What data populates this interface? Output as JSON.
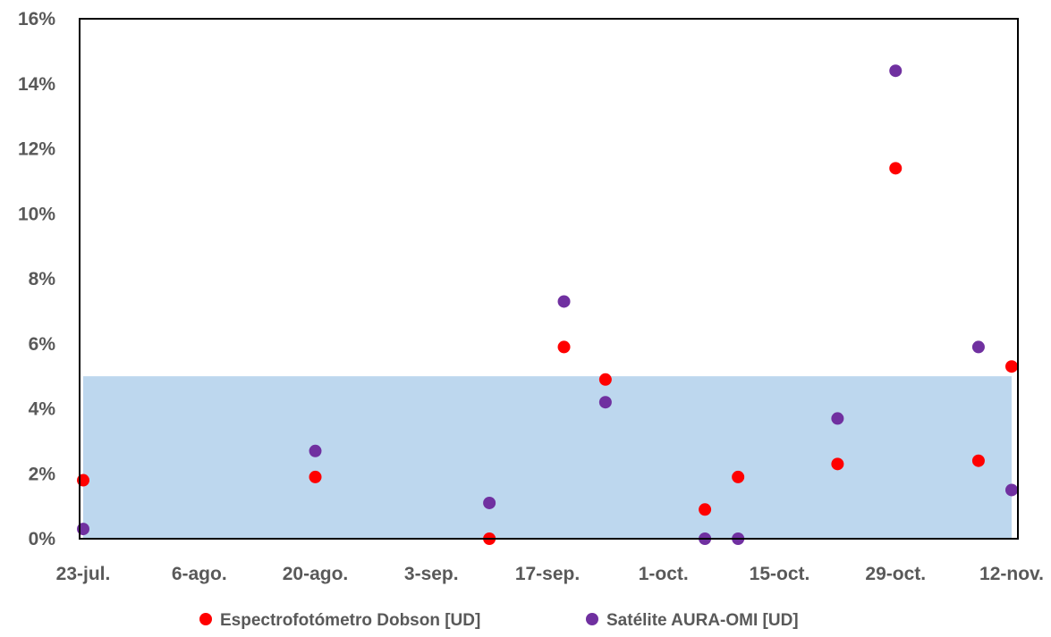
{
  "chart_data": {
    "type": "scatter",
    "title": "",
    "xlabel": "",
    "ylabel": "",
    "x_ticks": [
      "23-jul.",
      "6-ago.",
      "20-ago.",
      "3-sep.",
      "17-sep.",
      "1-oct.",
      "15-oct.",
      "29-oct.",
      "12-nov."
    ],
    "x_range": [
      "23-jul.",
      "12-nov."
    ],
    "y_ticks": [
      "0%",
      "2%",
      "4%",
      "6%",
      "8%",
      "10%",
      "12%",
      "14%",
      "16%"
    ],
    "ylim": [
      0,
      16
    ],
    "y_unit": "%",
    "band": {
      "from": 0,
      "to": 5,
      "color": "#bdd7ee"
    },
    "grid": false,
    "legend_position": "bottom",
    "series": [
      {
        "name": "Espectrofotómetro Dobson [UD]",
        "color": "#ff0000",
        "points": [
          {
            "x": "23-jul.",
            "y": 1.8
          },
          {
            "x": "20-ago.",
            "y": 1.9
          },
          {
            "x": "10-sep.",
            "y": 0.0
          },
          {
            "x": "19-sep.",
            "y": 5.9
          },
          {
            "x": "24-sep.",
            "y": 4.9
          },
          {
            "x": "6-oct.",
            "y": 0.9
          },
          {
            "x": "10-oct.",
            "y": 1.9
          },
          {
            "x": "22-oct.",
            "y": 2.3
          },
          {
            "x": "29-oct.",
            "y": 11.4
          },
          {
            "x": "8-nov.",
            "y": 2.4
          },
          {
            "x": "12-nov.",
            "y": 5.3
          }
        ]
      },
      {
        "name": "Satélite AURA-OMI [UD]",
        "color": "#7030a0",
        "points": [
          {
            "x": "23-jul.",
            "y": 0.3
          },
          {
            "x": "20-ago.",
            "y": 2.7
          },
          {
            "x": "10-sep.",
            "y": 1.1
          },
          {
            "x": "19-sep.",
            "y": 7.3
          },
          {
            "x": "24-sep.",
            "y": 4.2
          },
          {
            "x": "6-oct.",
            "y": 0.0
          },
          {
            "x": "10-oct.",
            "y": 0.0
          },
          {
            "x": "22-oct.",
            "y": 3.7
          },
          {
            "x": "29-oct.",
            "y": 14.4
          },
          {
            "x": "8-nov.",
            "y": 5.9
          },
          {
            "x": "12-nov.",
            "y": 1.5
          }
        ]
      }
    ]
  }
}
